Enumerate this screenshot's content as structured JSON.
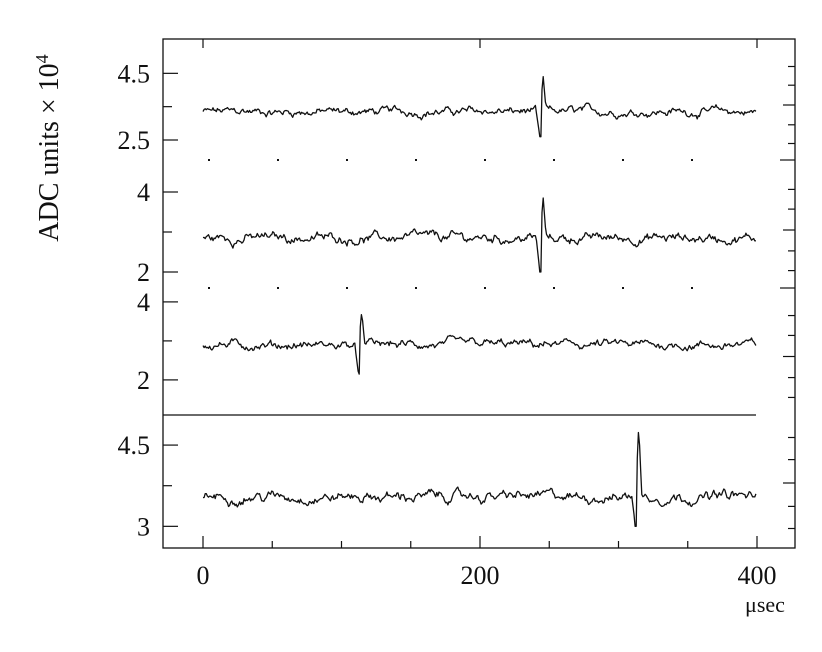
{
  "chart_data": {
    "type": "line",
    "ylabel": "ADC units × 10⁴",
    "ylabel_text": "ADC units × 10",
    "ylabel_exponent": "4",
    "xlabel": "μsec",
    "xlim": [
      0,
      400
    ],
    "x_ticks": [
      0,
      200,
      400
    ],
    "grid": false,
    "legend": "none",
    "panels": [
      {
        "name": "trace-1",
        "ylim": [
          1.9,
          5.2
        ],
        "y_tick_labels": [
          {
            "value": 4.5,
            "label": "4.5"
          },
          {
            "value": 2.5,
            "label": "2.5"
          }
        ],
        "baseline": 3.35,
        "noise": 0.22,
        "pulse": {
          "x": 243,
          "height": 1.05,
          "dip": 0.75
        }
      },
      {
        "name": "trace-2",
        "ylim": [
          1.6,
          4.5
        ],
        "y_tick_labels": [
          {
            "value": 4,
            "label": "4"
          },
          {
            "value": 2,
            "label": "2"
          }
        ],
        "baseline": 2.85,
        "noise": 0.22,
        "pulse": {
          "x": 243,
          "height": 1.0,
          "dip": 0.85
        }
      },
      {
        "name": "trace-3",
        "ylim": [
          1.1,
          4.1
        ],
        "y_tick_labels": [
          {
            "value": 4,
            "label": "4"
          },
          {
            "value": 2,
            "label": "2"
          }
        ],
        "baseline": 2.9,
        "noise": 0.2,
        "pulse": {
          "x": 112,
          "height": 0.85,
          "dip": 0.75
        }
      },
      {
        "name": "trace-4",
        "ylim": [
          2.6,
          5.0
        ],
        "y_tick_labels": [
          {
            "value": 4.5,
            "label": "4.5"
          },
          {
            "value": 3,
            "label": "3"
          }
        ],
        "baseline": 3.55,
        "noise": 0.17,
        "pulse": {
          "x": 312,
          "height": 1.3,
          "dip": 0.55
        }
      }
    ]
  }
}
